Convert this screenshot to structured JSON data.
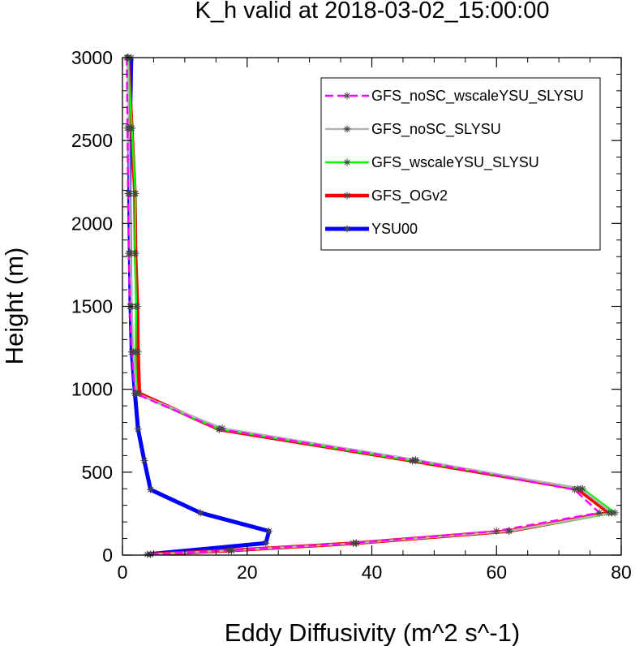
{
  "chart_data": {
    "type": "line",
    "title": "K_h valid at 2018-03-02_15:00:00",
    "xlabel": "Eddy Diffusivity (m^2 s^-1)",
    "ylabel": "Height (m)",
    "xlim": [
      0,
      80
    ],
    "ylim": [
      0,
      3000
    ],
    "xticks": [
      0,
      20,
      40,
      60,
      80
    ],
    "yticks": [
      0,
      500,
      1000,
      1500,
      2000,
      2500,
      3000
    ],
    "grid": false,
    "legend_position": "top-right",
    "series": [
      {
        "name": "GFS_noSC_wscaleYSU_SLYSU",
        "color": "#ff00ff",
        "dash": "dashed",
        "points": [
          [
            4.5,
            5
          ],
          [
            17,
            28
          ],
          [
            37,
            72
          ],
          [
            60,
            145
          ],
          [
            76.5,
            255
          ],
          [
            72.5,
            395
          ],
          [
            47,
            570
          ],
          [
            15.5,
            760
          ],
          [
            2,
            975
          ],
          [
            1.5,
            1225
          ],
          [
            1.2,
            1500
          ],
          [
            1.0,
            1820
          ],
          [
            0.9,
            2180
          ],
          [
            0.8,
            2575
          ],
          [
            0.7,
            3000
          ]
        ]
      },
      {
        "name": "GFS_noSC_SLYSU",
        "color": "#b4b4b4",
        "dash": "solid",
        "points": [
          [
            4.5,
            5
          ],
          [
            17.5,
            28
          ],
          [
            37.5,
            72
          ],
          [
            62,
            145
          ],
          [
            78.5,
            255
          ],
          [
            73.5,
            400
          ],
          [
            47,
            575
          ],
          [
            16,
            765
          ],
          [
            2.2,
            975
          ],
          [
            1.7,
            1225
          ],
          [
            1.5,
            1500
          ],
          [
            1.3,
            1820
          ],
          [
            1.2,
            2180
          ],
          [
            1.0,
            2575
          ],
          [
            0.8,
            3000
          ]
        ]
      },
      {
        "name": "GFS_wscaleYSU_SLYSU",
        "color": "#00ff00",
        "dash": "solid",
        "points": [
          [
            4.5,
            5
          ],
          [
            17.5,
            28
          ],
          [
            37.5,
            72
          ],
          [
            62,
            145
          ],
          [
            79,
            255
          ],
          [
            73.8,
            400
          ],
          [
            46.5,
            570
          ],
          [
            15.5,
            760
          ],
          [
            2.2,
            975
          ],
          [
            2.1,
            1225
          ],
          [
            2.2,
            1500
          ],
          [
            2.0,
            1820
          ],
          [
            2.1,
            2180
          ],
          [
            1.5,
            2575
          ],
          [
            0.9,
            3000
          ]
        ]
      },
      {
        "name": "GFS_OGv2",
        "color": "#ff0000",
        "dash": "solid",
        "points": [
          [
            4.5,
            5
          ],
          [
            17.5,
            28
          ],
          [
            37.5,
            72
          ],
          [
            62,
            145
          ],
          [
            78,
            255
          ],
          [
            73,
            400
          ],
          [
            46.5,
            568
          ],
          [
            15.5,
            758
          ],
          [
            2.7,
            975
          ],
          [
            2.5,
            1225
          ],
          [
            2.4,
            1500
          ],
          [
            2.1,
            1820
          ],
          [
            2.0,
            2180
          ],
          [
            1.5,
            2575
          ],
          [
            0.9,
            3000
          ]
        ]
      },
      {
        "name": "YSU00",
        "color": "#0000ff",
        "dash": "solid",
        "points": [
          [
            4,
            5
          ],
          [
            23,
            72
          ],
          [
            23.5,
            145
          ],
          [
            12.5,
            255
          ],
          [
            4.5,
            395
          ],
          [
            3.5,
            570
          ],
          [
            2.5,
            760
          ],
          [
            2.0,
            975
          ],
          [
            1.5,
            1225
          ],
          [
            1.3,
            1500
          ],
          [
            1.2,
            1820
          ],
          [
            1.1,
            2180
          ],
          [
            1.2,
            2575
          ],
          [
            1.4,
            3000
          ]
        ]
      }
    ]
  }
}
